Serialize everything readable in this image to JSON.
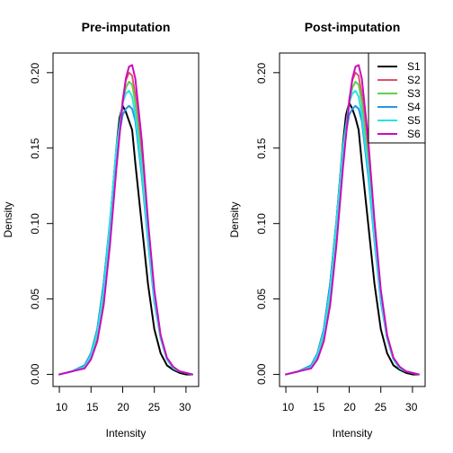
{
  "chart_data": [
    {
      "type": "line",
      "title": "Pre-imputation",
      "xlabel": "Intensity",
      "ylabel": "Density",
      "xlim": [
        9,
        32
      ],
      "ylim": [
        -0.008,
        0.213
      ],
      "x_ticks": [
        10,
        15,
        20,
        25,
        30
      ],
      "y_ticks": [
        0.0,
        0.05,
        0.1,
        0.15,
        0.2
      ],
      "x_tick_labels": [
        "10",
        "15",
        "20",
        "25",
        "30"
      ],
      "y_tick_labels": [
        "0.00",
        "0.05",
        "0.10",
        "0.15",
        "0.20"
      ],
      "grid": false,
      "legend": null,
      "series": [
        {
          "color": "#000000",
          "lw": 2,
          "x": [
            10,
            12,
            14,
            15,
            16,
            17,
            18,
            19,
            19.5,
            20,
            20.5,
            21,
            21.5,
            22,
            23,
            24,
            25,
            26,
            27,
            28,
            29,
            30,
            31
          ],
          "y": [
            0.0,
            0.002,
            0.006,
            0.014,
            0.03,
            0.06,
            0.1,
            0.15,
            0.17,
            0.178,
            0.174,
            0.168,
            0.162,
            0.14,
            0.1,
            0.06,
            0.03,
            0.014,
            0.006,
            0.003,
            0.001,
            0.0,
            0.0
          ]
        },
        {
          "color": "#DF536B",
          "lw": 2,
          "x": [
            10,
            12,
            14,
            15,
            16,
            17,
            18,
            19,
            20,
            20.5,
            21,
            21.5,
            22,
            23,
            24,
            25,
            26,
            27,
            28,
            29,
            30,
            31
          ],
          "y": [
            0.0,
            0.002,
            0.005,
            0.011,
            0.024,
            0.048,
            0.09,
            0.14,
            0.182,
            0.195,
            0.2,
            0.198,
            0.185,
            0.145,
            0.095,
            0.052,
            0.024,
            0.01,
            0.004,
            0.002,
            0.001,
            0.0
          ]
        },
        {
          "color": "#61D04F",
          "lw": 2,
          "x": [
            10,
            12,
            14,
            15,
            16,
            17,
            18,
            19,
            20,
            20.5,
            21,
            21.5,
            22,
            23,
            24,
            25,
            26,
            27,
            28,
            29,
            30,
            31
          ],
          "y": [
            0.0,
            0.002,
            0.005,
            0.012,
            0.026,
            0.052,
            0.094,
            0.142,
            0.18,
            0.19,
            0.194,
            0.192,
            0.18,
            0.14,
            0.092,
            0.05,
            0.024,
            0.01,
            0.004,
            0.002,
            0.001,
            0.0
          ]
        },
        {
          "color": "#2297E6",
          "lw": 2,
          "x": [
            10,
            12,
            14,
            15,
            16,
            17,
            18,
            19,
            20,
            20.5,
            21,
            21.5,
            22,
            23,
            24,
            25,
            26,
            27,
            28,
            29,
            30,
            31
          ],
          "y": [
            0.0,
            0.002,
            0.006,
            0.014,
            0.03,
            0.06,
            0.102,
            0.148,
            0.172,
            0.176,
            0.178,
            0.176,
            0.168,
            0.132,
            0.088,
            0.048,
            0.024,
            0.01,
            0.004,
            0.002,
            0.001,
            0.0
          ]
        },
        {
          "color": "#28E2E5",
          "lw": 2,
          "x": [
            10,
            12,
            14,
            15,
            16,
            17,
            18,
            19,
            20,
            20.5,
            21,
            21.5,
            22,
            23,
            24,
            25,
            26,
            27,
            28,
            29,
            30,
            31
          ],
          "y": [
            0.0,
            0.002,
            0.005,
            0.013,
            0.028,
            0.056,
            0.1,
            0.15,
            0.18,
            0.186,
            0.188,
            0.184,
            0.172,
            0.136,
            0.09,
            0.05,
            0.024,
            0.01,
            0.004,
            0.002,
            0.001,
            0.0
          ]
        },
        {
          "color": "#CD0BBC",
          "lw": 2,
          "x": [
            10,
            12,
            14,
            15,
            16,
            17,
            18,
            19,
            20,
            20.5,
            21,
            21.5,
            22,
            23,
            24,
            25,
            26,
            27,
            28,
            29,
            30,
            31
          ],
          "y": [
            0.0,
            0.002,
            0.004,
            0.01,
            0.022,
            0.046,
            0.086,
            0.136,
            0.18,
            0.196,
            0.204,
            0.205,
            0.196,
            0.156,
            0.102,
            0.056,
            0.026,
            0.011,
            0.005,
            0.002,
            0.001,
            0.0
          ]
        }
      ]
    },
    {
      "type": "line",
      "title": "Post-imputation",
      "xlabel": "Intensity",
      "ylabel": "Density",
      "xlim": [
        9,
        32
      ],
      "ylim": [
        -0.008,
        0.213
      ],
      "x_ticks": [
        10,
        15,
        20,
        25,
        30
      ],
      "y_ticks": [
        0.0,
        0.05,
        0.1,
        0.15,
        0.2
      ],
      "x_tick_labels": [
        "10",
        "15",
        "20",
        "25",
        "30"
      ],
      "y_tick_labels": [
        "0.00",
        "0.05",
        "0.10",
        "0.15",
        "0.20"
      ],
      "grid": false,
      "legend": {
        "placement": "top-right",
        "labels": [
          "S1",
          "S2",
          "S3",
          "S4",
          "S5",
          "S6"
        ]
      },
      "series": [
        {
          "name": "S1",
          "color": "#000000",
          "lw": 2,
          "x": [
            10,
            12,
            14,
            15,
            16,
            17,
            18,
            19,
            19.5,
            20,
            20.5,
            21,
            21.5,
            22,
            23,
            24,
            25,
            26,
            27,
            28,
            29,
            30,
            31
          ],
          "y": [
            0.0,
            0.002,
            0.006,
            0.014,
            0.03,
            0.06,
            0.102,
            0.152,
            0.172,
            0.18,
            0.176,
            0.17,
            0.162,
            0.14,
            0.1,
            0.06,
            0.03,
            0.014,
            0.006,
            0.003,
            0.001,
            0.0,
            0.0
          ]
        },
        {
          "name": "S2",
          "color": "#DF536B",
          "lw": 2,
          "x": [
            10,
            12,
            14,
            15,
            16,
            17,
            18,
            19,
            20,
            20.5,
            21,
            21.5,
            22,
            23,
            24,
            25,
            26,
            27,
            28,
            29,
            30,
            31
          ],
          "y": [
            0.0,
            0.002,
            0.005,
            0.011,
            0.024,
            0.048,
            0.09,
            0.14,
            0.182,
            0.195,
            0.2,
            0.198,
            0.185,
            0.145,
            0.095,
            0.052,
            0.024,
            0.01,
            0.004,
            0.002,
            0.001,
            0.0
          ]
        },
        {
          "name": "S3",
          "color": "#61D04F",
          "lw": 2,
          "x": [
            10,
            12,
            14,
            15,
            16,
            17,
            18,
            19,
            20,
            20.5,
            21,
            21.5,
            22,
            23,
            24,
            25,
            26,
            27,
            28,
            29,
            30,
            31
          ],
          "y": [
            0.0,
            0.002,
            0.005,
            0.012,
            0.026,
            0.052,
            0.094,
            0.142,
            0.18,
            0.19,
            0.194,
            0.192,
            0.18,
            0.14,
            0.092,
            0.05,
            0.024,
            0.01,
            0.004,
            0.002,
            0.001,
            0.0
          ]
        },
        {
          "name": "S4",
          "color": "#2297E6",
          "lw": 2,
          "x": [
            10,
            12,
            14,
            15,
            16,
            17,
            18,
            19,
            20,
            20.5,
            21,
            21.5,
            22,
            23,
            24,
            25,
            26,
            27,
            28,
            29,
            30,
            31
          ],
          "y": [
            0.0,
            0.002,
            0.006,
            0.014,
            0.03,
            0.06,
            0.102,
            0.148,
            0.172,
            0.176,
            0.178,
            0.176,
            0.168,
            0.132,
            0.088,
            0.048,
            0.024,
            0.01,
            0.004,
            0.002,
            0.001,
            0.0
          ]
        },
        {
          "name": "S5",
          "color": "#28E2E5",
          "lw": 2,
          "x": [
            10,
            12,
            14,
            15,
            16,
            17,
            18,
            19,
            20,
            20.5,
            21,
            21.5,
            22,
            23,
            24,
            25,
            26,
            27,
            28,
            29,
            30,
            31
          ],
          "y": [
            0.0,
            0.002,
            0.005,
            0.013,
            0.028,
            0.056,
            0.1,
            0.15,
            0.18,
            0.186,
            0.188,
            0.184,
            0.172,
            0.136,
            0.09,
            0.05,
            0.024,
            0.01,
            0.004,
            0.002,
            0.001,
            0.0
          ]
        },
        {
          "name": "S6",
          "color": "#CD0BBC",
          "lw": 2,
          "x": [
            10,
            12,
            14,
            15,
            16,
            17,
            18,
            19,
            20,
            20.5,
            21,
            21.5,
            22,
            23,
            24,
            25,
            26,
            27,
            28,
            29,
            30,
            31
          ],
          "y": [
            0.0,
            0.002,
            0.004,
            0.01,
            0.022,
            0.046,
            0.086,
            0.136,
            0.18,
            0.196,
            0.204,
            0.205,
            0.196,
            0.156,
            0.102,
            0.056,
            0.026,
            0.011,
            0.005,
            0.002,
            0.001,
            0.0
          ]
        }
      ]
    }
  ]
}
